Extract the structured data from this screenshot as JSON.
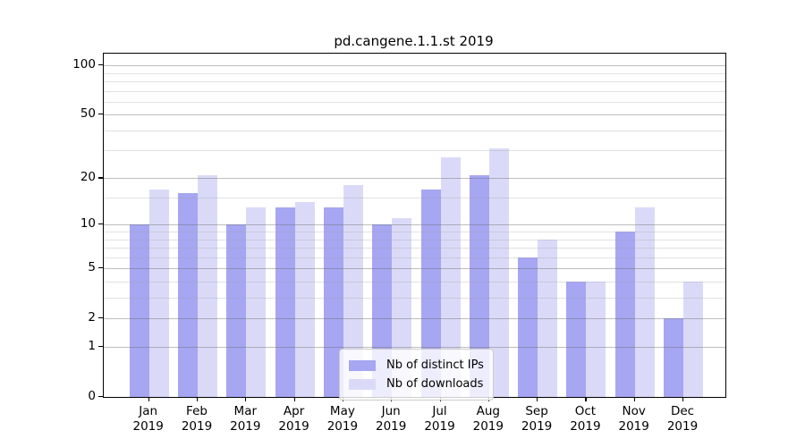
{
  "title": "pd.cangene.1.1.st 2019",
  "chart_data": {
    "type": "bar",
    "title": "pd.cangene.1.1.st 2019",
    "categories": [
      "Jan 2019",
      "Feb 2019",
      "Mar 2019",
      "Apr 2019",
      "May 2019",
      "Jun 2019",
      "Jul 2019",
      "Aug 2019",
      "Sep 2019",
      "Oct 2019",
      "Nov 2019",
      "Dec 2019"
    ],
    "x_tick_lines": [
      [
        "Jan",
        "2019"
      ],
      [
        "Feb",
        "2019"
      ],
      [
        "Mar",
        "2019"
      ],
      [
        "Apr",
        "2019"
      ],
      [
        "May",
        "2019"
      ],
      [
        "Jun",
        "2019"
      ],
      [
        "Jul",
        "2019"
      ],
      [
        "Aug",
        "2019"
      ],
      [
        "Sep",
        "2019"
      ],
      [
        "Oct",
        "2019"
      ],
      [
        "Nov",
        "2019"
      ],
      [
        "Dec",
        "2019"
      ]
    ],
    "series": [
      {
        "name": "Nb of distinct IPs",
        "color": "#a6a6f2",
        "values": [
          10,
          16,
          10,
          13,
          13,
          10,
          17,
          21,
          6,
          4,
          9,
          2
        ]
      },
      {
        "name": "Nb of downloads",
        "color": "#dadaf8",
        "values": [
          17,
          21,
          13,
          14,
          18,
          11,
          27,
          31,
          8,
          4,
          13,
          4
        ]
      }
    ],
    "yscale": "log10(1+x)",
    "ylim": [
      0,
      118
    ],
    "y_major_ticks": [
      0,
      1,
      2,
      5,
      10,
      20,
      50,
      100
    ],
    "y_major_tick_labels": [
      "0",
      "1",
      "2",
      "5",
      "10",
      "20",
      "50",
      "100"
    ],
    "y_minor_ticks": [
      3,
      4,
      6,
      7,
      8,
      9,
      15,
      30,
      40,
      60,
      70,
      80,
      90
    ],
    "grid": true,
    "legend_position": "inside-bottom-center",
    "colors": {
      "axis": "#000000",
      "grid_major": "rgba(110,110,110,0.45)",
      "grid_minor": "rgba(160,160,160,0.30)",
      "background": "#ffffff"
    }
  },
  "legend": {
    "items": [
      {
        "label": "Nb of distinct IPs",
        "color": "#a6a6f2"
      },
      {
        "label": "Nb of downloads",
        "color": "#dadaf8"
      }
    ]
  }
}
